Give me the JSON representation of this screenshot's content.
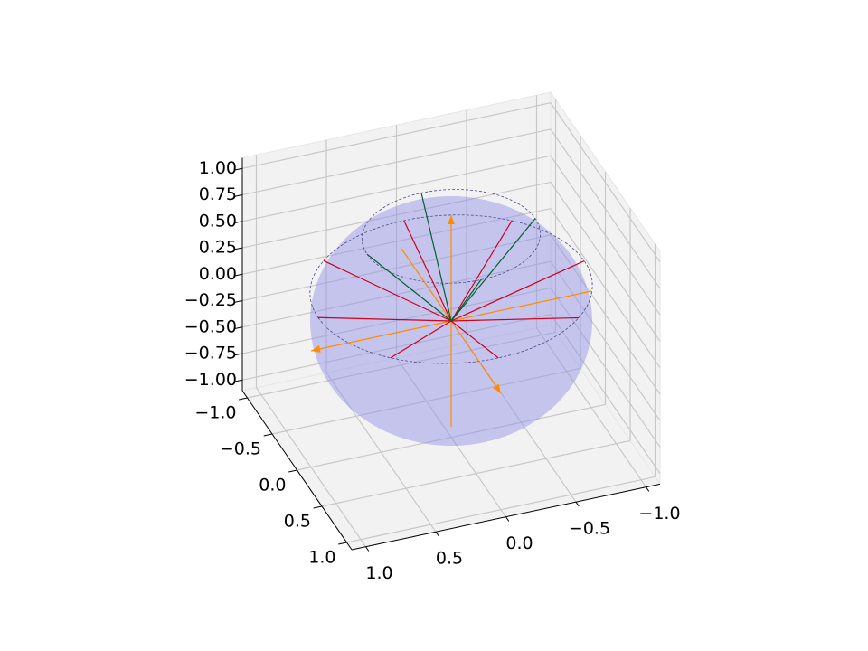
{
  "chart_data": {
    "type": "vectors3d",
    "xlim": [
      -1,
      1
    ],
    "ylim": [
      -1,
      1
    ],
    "zlim": [
      -1,
      1
    ],
    "xticks": [
      {
        "value": -1,
        "label": "−1.0"
      },
      {
        "value": -0.5,
        "label": "−0.5"
      },
      {
        "value": 0,
        "label": "0.0"
      },
      0.5,
      {
        "value": 1,
        "label": "1.0"
      }
    ],
    "yticks": [
      {
        "value": -1,
        "label": "−1.0"
      },
      {
        "value": -0.5,
        "label": "−0.5"
      },
      {
        "value": 0,
        "label": "0.0"
      },
      0.5,
      {
        "value": 1,
        "label": "1.0"
      }
    ],
    "zticks": [
      {
        "value": -1,
        "label": "−1.00"
      },
      {
        "value": -0.75,
        "label": "−0.75"
      },
      {
        "value": -0.5,
        "label": "−0.50"
      },
      {
        "value": -0.25,
        "label": "−0.25"
      },
      {
        "value": 0,
        "label": "0.00"
      },
      0.25,
      {
        "value": 0.5,
        "label": "0.50"
      },
      0.75,
      {
        "value": 1,
        "label": "1.00"
      }
    ],
    "grid": true,
    "circles": {
      "z": [
        0.3,
        0.8
      ],
      "r": [
        0.95,
        0.6
      ]
    },
    "series": [
      {
        "color": "#ff8c00",
        "arrow": true,
        "x": [
          1,
          0,
          0
        ],
        "y": [
          0,
          1,
          0
        ],
        "z": [
          0,
          0,
          1
        ]
      },
      {
        "color": "#ff8c00",
        "arrow": false,
        "x": [
          -1,
          0,
          0
        ],
        "y": [
          0,
          -1,
          0
        ],
        "z": [
          0,
          0,
          -1
        ]
      },
      {
        "color": "#d00020",
        "arrow": false,
        "x": [
          0.95,
          0.672,
          0,
          -0.672,
          -0.95,
          -0.672,
          0,
          0.672
        ],
        "y": [
          0,
          0.672,
          0.95,
          0.672,
          0,
          -0.672,
          -0.95,
          -0.672
        ],
        "z": [
          0.3,
          0.3,
          0.3,
          0.3,
          0.3,
          0.3,
          0.3,
          0.3
        ]
      },
      {
        "color": "#006030",
        "arrow": false,
        "x": [
          0.6,
          0,
          -0.6,
          0
        ],
        "y": [
          0,
          0.6,
          0,
          -0.6
        ],
        "z": [
          0.8,
          0.8,
          0.8,
          0.8
        ]
      }
    ]
  }
}
